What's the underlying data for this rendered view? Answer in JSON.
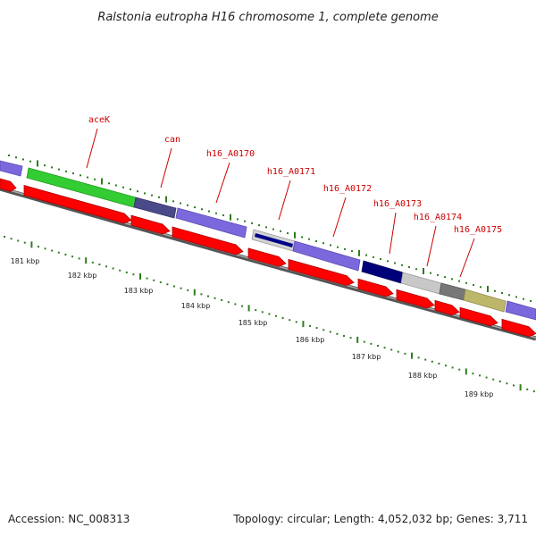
{
  "title": "Ralstonia eutropha H16 chromosome 1, complete genome",
  "footer": {
    "accession": "Accession: NC_008313",
    "summary": "Topology: circular; Length: 4,052,032 bp; Genes: 3,711"
  },
  "colors": {
    "forward_cds": "#7b68dd",
    "reverse_cds": "#ff0000",
    "backbone": "#888888",
    "tick": "#2e7d1e",
    "label": "#cc0000"
  },
  "gene_labels": [
    "aceK",
    "can",
    "h16_A0170",
    "h16_A0171",
    "h16_A0172",
    "h16_A0173",
    "h16_A0174",
    "h16_A0175"
  ],
  "kbp_labels": [
    "181 kbp",
    "182 kbp",
    "183 kbp",
    "184 kbp",
    "185 kbp",
    "186 kbp",
    "187 kbp",
    "188 kbp",
    "189 kbp"
  ]
}
